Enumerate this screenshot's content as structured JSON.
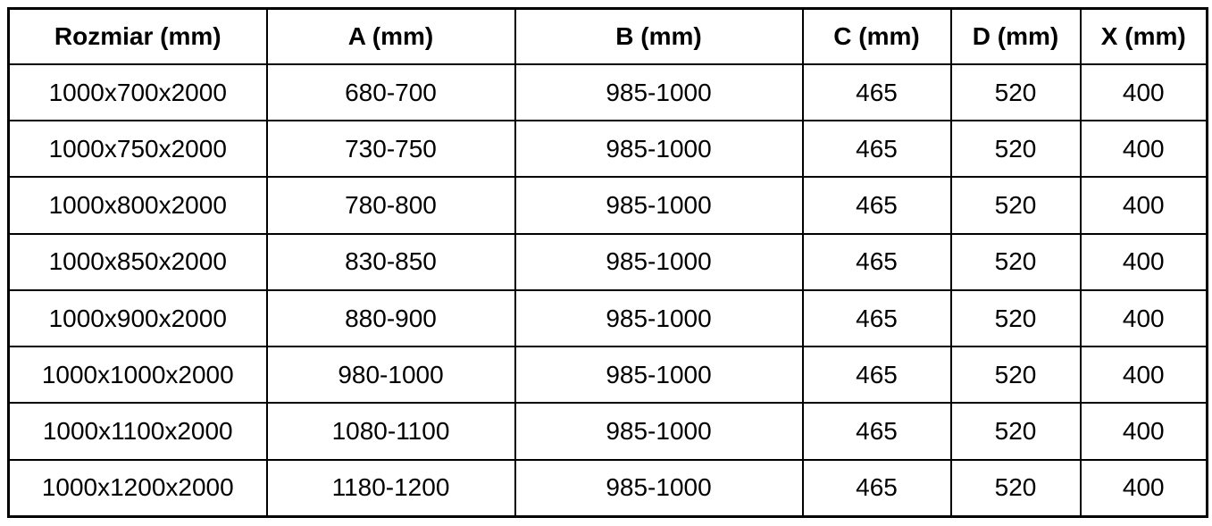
{
  "table": {
    "columns": [
      "Rozmiar (mm)",
      "A (mm)",
      "B (mm)",
      "C (mm)",
      "D (mm)",
      "X (mm)"
    ],
    "rows": [
      [
        "1000x700x2000",
        "680-700",
        "985-1000",
        "465",
        "520",
        "400"
      ],
      [
        "1000x750x2000",
        "730-750",
        "985-1000",
        "465",
        "520",
        "400"
      ],
      [
        "1000x800x2000",
        "780-800",
        "985-1000",
        "465",
        "520",
        "400"
      ],
      [
        "1000x850x2000",
        "830-850",
        "985-1000",
        "465",
        "520",
        "400"
      ],
      [
        "1000x900x2000",
        "880-900",
        "985-1000",
        "465",
        "520",
        "400"
      ],
      [
        "1000x1000x2000",
        "980-1000",
        "985-1000",
        "465",
        "520",
        "400"
      ],
      [
        "1000x1100x2000",
        "1080-1100",
        "985-1000",
        "465",
        "520",
        "400"
      ],
      [
        "1000x1200x2000",
        "1180-1200",
        "985-1000",
        "465",
        "520",
        "400"
      ]
    ]
  },
  "colors": {
    "border": "#000000",
    "text": "#000000",
    "background": "#ffffff"
  }
}
